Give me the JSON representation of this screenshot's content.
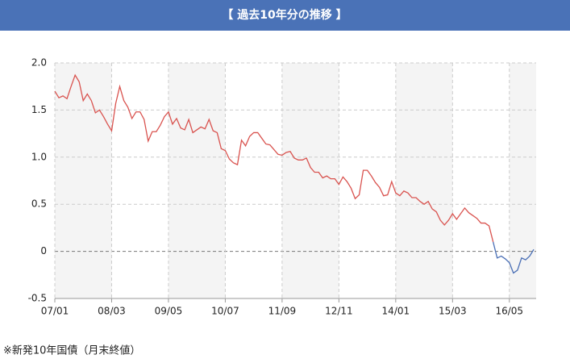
{
  "chart_data": {
    "type": "line",
    "title": "【 過去10年分の推移 】",
    "note": "※新発10年国債（月末終値）",
    "categories": [
      "07/01",
      null,
      null,
      null,
      null,
      null,
      null,
      null,
      null,
      null,
      null,
      null,
      null,
      null,
      "08/03",
      null,
      null,
      null,
      null,
      null,
      null,
      null,
      null,
      null,
      null,
      null,
      null,
      null,
      "09/05",
      null,
      null,
      null,
      null,
      null,
      null,
      null,
      null,
      null,
      null,
      null,
      null,
      null,
      "10/07",
      null,
      null,
      null,
      null,
      null,
      null,
      null,
      null,
      null,
      null,
      null,
      null,
      null,
      "11/09",
      null,
      null,
      null,
      null,
      null,
      null,
      null,
      null,
      null,
      null,
      null,
      null,
      null,
      "12/11",
      null,
      null,
      null,
      null,
      null,
      null,
      null,
      null,
      null,
      null,
      null,
      null,
      null,
      "14/01",
      null,
      null,
      null,
      null,
      null,
      null,
      null,
      null,
      null,
      null,
      null,
      null,
      null,
      "15/03",
      null,
      null,
      null,
      null,
      null,
      null,
      null,
      null,
      null,
      null,
      null,
      null,
      null,
      "16/05",
      null,
      null,
      null,
      null,
      null,
      null
    ],
    "values": [
      1.7,
      1.63,
      1.65,
      1.62,
      1.75,
      1.87,
      1.8,
      1.6,
      1.67,
      1.6,
      1.47,
      1.5,
      1.43,
      1.35,
      1.28,
      1.57,
      1.75,
      1.6,
      1.53,
      1.41,
      1.48,
      1.48,
      1.4,
      1.17,
      1.27,
      1.27,
      1.34,
      1.43,
      1.48,
      1.35,
      1.41,
      1.31,
      1.29,
      1.4,
      1.26,
      1.29,
      1.32,
      1.3,
      1.4,
      1.28,
      1.26,
      1.09,
      1.07,
      0.98,
      0.94,
      0.92,
      1.18,
      1.12,
      1.22,
      1.26,
      1.26,
      1.2,
      1.14,
      1.13,
      1.08,
      1.03,
      1.02,
      1.05,
      1.06,
      0.99,
      0.97,
      0.97,
      0.99,
      0.89,
      0.84,
      0.84,
      0.78,
      0.8,
      0.77,
      0.77,
      0.71,
      0.79,
      0.74,
      0.67,
      0.56,
      0.6,
      0.86,
      0.86,
      0.8,
      0.73,
      0.68,
      0.59,
      0.6,
      0.74,
      0.62,
      0.59,
      0.64,
      0.62,
      0.57,
      0.57,
      0.53,
      0.5,
      0.53,
      0.45,
      0.42,
      0.33,
      0.28,
      0.33,
      0.4,
      0.34,
      0.4,
      0.46,
      0.41,
      0.38,
      0.35,
      0.3,
      0.3,
      0.27,
      0.1,
      -0.07,
      -0.05,
      -0.08,
      -0.12,
      -0.23,
      -0.2,
      -0.07,
      -0.09,
      -0.05,
      0.02
    ],
    "color": "#d9534f",
    "negative_color": "#4a6fb5",
    "ylim": [
      -0.5,
      2
    ],
    "yticks": [
      {
        "value": 2,
        "label": "2.0"
      },
      {
        "value": 1.5,
        "label": "1.5"
      },
      {
        "value": 1,
        "label": "1.0"
      },
      {
        "value": 0.5,
        "label": "0.5"
      },
      0,
      -0.5
    ],
    "grid": true
  }
}
